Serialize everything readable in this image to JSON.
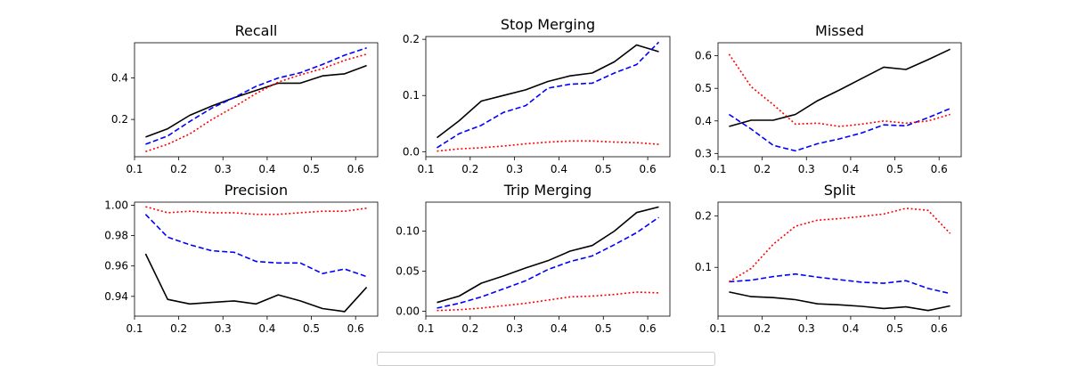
{
  "chart_data": [
    {
      "type": "line",
      "title": "Recall",
      "x": [
        0.125,
        0.175,
        0.225,
        0.275,
        0.325,
        0.375,
        0.425,
        0.475,
        0.525,
        0.575,
        0.625
      ],
      "series": [
        {
          "color": "#000000",
          "dash": "solid",
          "values": [
            0.115,
            0.155,
            0.22,
            0.265,
            0.305,
            0.34,
            0.375,
            0.375,
            0.41,
            0.42,
            0.46
          ]
        },
        {
          "color": "#0000ff",
          "dash": "dashed",
          "values": [
            0.08,
            0.12,
            0.19,
            0.255,
            0.305,
            0.36,
            0.4,
            0.425,
            0.465,
            0.51,
            0.545
          ]
        },
        {
          "color": "#ff0000",
          "dash": "dotted",
          "values": [
            0.045,
            0.08,
            0.13,
            0.2,
            0.26,
            0.325,
            0.38,
            0.415,
            0.445,
            0.485,
            0.515
          ]
        }
      ],
      "xlim": [
        0.1,
        0.65
      ],
      "ylim": [
        0.02,
        0.57
      ],
      "xticks": [
        0.1,
        0.2,
        0.3,
        0.4,
        0.5,
        0.6
      ],
      "yticks": [
        0.2,
        0.4
      ],
      "xtick_labels": [
        "0.1",
        "0.2",
        "0.3",
        "0.4",
        "0.5",
        "0.6"
      ],
      "ytick_labels": [
        "0.2",
        "0.4"
      ]
    },
    {
      "type": "line",
      "title": "Stop Merging",
      "x": [
        0.125,
        0.175,
        0.225,
        0.275,
        0.325,
        0.375,
        0.425,
        0.475,
        0.525,
        0.575,
        0.625
      ],
      "series": [
        {
          "color": "#000000",
          "dash": "solid",
          "values": [
            0.025,
            0.055,
            0.09,
            0.1,
            0.11,
            0.125,
            0.135,
            0.14,
            0.16,
            0.19,
            0.178
          ]
        },
        {
          "color": "#0000ff",
          "dash": "dashed",
          "values": [
            0.007,
            0.032,
            0.047,
            0.07,
            0.082,
            0.113,
            0.12,
            0.122,
            0.14,
            0.155,
            0.195
          ]
        },
        {
          "color": "#ff0000",
          "dash": "dotted",
          "values": [
            0.001,
            0.005,
            0.007,
            0.01,
            0.014,
            0.017,
            0.019,
            0.019,
            0.017,
            0.016,
            0.013
          ]
        }
      ],
      "xlim": [
        0.1,
        0.65
      ],
      "ylim": [
        -0.009,
        0.205
      ],
      "xticks": [
        0.1,
        0.2,
        0.3,
        0.4,
        0.5,
        0.6
      ],
      "yticks": [
        0.0,
        0.1,
        0.2
      ],
      "xtick_labels": [
        "0.1",
        "0.2",
        "0.3",
        "0.4",
        "0.5",
        "0.6"
      ],
      "ytick_labels": [
        "0.0",
        "0.1",
        "0.2"
      ]
    },
    {
      "type": "line",
      "title": "Missed",
      "x": [
        0.125,
        0.175,
        0.225,
        0.275,
        0.325,
        0.375,
        0.425,
        0.475,
        0.525,
        0.575,
        0.625
      ],
      "series": [
        {
          "color": "#000000",
          "dash": "solid",
          "values": [
            0.383,
            0.402,
            0.402,
            0.42,
            0.462,
            0.495,
            0.53,
            0.565,
            0.558,
            0.588,
            0.62
          ]
        },
        {
          "color": "#0000ff",
          "dash": "dashed",
          "values": [
            0.42,
            0.375,
            0.325,
            0.308,
            0.33,
            0.345,
            0.363,
            0.388,
            0.385,
            0.41,
            0.438
          ]
        },
        {
          "color": "#ff0000",
          "dash": "dotted",
          "values": [
            0.605,
            0.505,
            0.45,
            0.39,
            0.393,
            0.383,
            0.39,
            0.4,
            0.393,
            0.4,
            0.42
          ]
        }
      ],
      "xlim": [
        0.1,
        0.65
      ],
      "ylim": [
        0.29,
        0.64
      ],
      "xticks": [
        0.1,
        0.2,
        0.3,
        0.4,
        0.5,
        0.6
      ],
      "yticks": [
        0.3,
        0.4,
        0.5,
        0.6
      ],
      "xtick_labels": [
        "0.1",
        "0.2",
        "0.3",
        "0.4",
        "0.5",
        "0.6"
      ],
      "ytick_labels": [
        "0.3",
        "0.4",
        "0.5",
        "0.6"
      ]
    },
    {
      "type": "line",
      "title": "Precision",
      "x": [
        0.125,
        0.175,
        0.225,
        0.275,
        0.325,
        0.375,
        0.425,
        0.475,
        0.525,
        0.575,
        0.625
      ],
      "series": [
        {
          "color": "#000000",
          "dash": "solid",
          "values": [
            0.968,
            0.938,
            0.935,
            0.936,
            0.937,
            0.935,
            0.941,
            0.937,
            0.932,
            0.93,
            0.946
          ]
        },
        {
          "color": "#0000ff",
          "dash": "dashed",
          "values": [
            0.994,
            0.979,
            0.974,
            0.97,
            0.969,
            0.963,
            0.962,
            0.962,
            0.955,
            0.958,
            0.953
          ]
        },
        {
          "color": "#ff0000",
          "dash": "dotted",
          "values": [
            0.999,
            0.995,
            0.996,
            0.995,
            0.995,
            0.994,
            0.994,
            0.995,
            0.996,
            0.996,
            0.998
          ]
        }
      ],
      "xlim": [
        0.1,
        0.65
      ],
      "ylim": [
        0.927,
        1.002
      ],
      "xticks": [
        0.1,
        0.2,
        0.3,
        0.4,
        0.5,
        0.6
      ],
      "yticks": [
        0.94,
        0.96,
        0.98,
        1.0
      ],
      "xtick_labels": [
        "0.1",
        "0.2",
        "0.3",
        "0.4",
        "0.5",
        "0.6"
      ],
      "ytick_labels": [
        "0.94",
        "0.96",
        "0.98",
        "1.00"
      ]
    },
    {
      "type": "line",
      "title": "Trip Merging",
      "x": [
        0.125,
        0.175,
        0.225,
        0.275,
        0.325,
        0.375,
        0.425,
        0.475,
        0.525,
        0.575,
        0.625
      ],
      "series": [
        {
          "color": "#000000",
          "dash": "solid",
          "values": [
            0.011,
            0.019,
            0.035,
            0.044,
            0.054,
            0.063,
            0.075,
            0.082,
            0.1,
            0.123,
            0.13
          ]
        },
        {
          "color": "#0000ff",
          "dash": "dashed",
          "values": [
            0.004,
            0.01,
            0.018,
            0.028,
            0.038,
            0.052,
            0.062,
            0.069,
            0.083,
            0.098,
            0.117
          ]
        },
        {
          "color": "#ff0000",
          "dash": "dotted",
          "values": [
            0.001,
            0.002,
            0.004,
            0.007,
            0.01,
            0.014,
            0.018,
            0.019,
            0.021,
            0.024,
            0.023
          ]
        }
      ],
      "xlim": [
        0.1,
        0.65
      ],
      "ylim": [
        -0.006,
        0.136
      ],
      "xticks": [
        0.1,
        0.2,
        0.3,
        0.4,
        0.5,
        0.6
      ],
      "yticks": [
        0.0,
        0.05,
        0.1
      ],
      "xtick_labels": [
        "0.1",
        "0.2",
        "0.3",
        "0.4",
        "0.5",
        "0.6"
      ],
      "ytick_labels": [
        "0.00",
        "0.05",
        "0.10"
      ]
    },
    {
      "type": "line",
      "title": "Split",
      "x": [
        0.125,
        0.175,
        0.225,
        0.275,
        0.325,
        0.375,
        0.425,
        0.475,
        0.525,
        0.575,
        0.625
      ],
      "series": [
        {
          "color": "#000000",
          "dash": "solid",
          "values": [
            0.052,
            0.043,
            0.041,
            0.037,
            0.029,
            0.027,
            0.024,
            0.02,
            0.023,
            0.016,
            0.025
          ]
        },
        {
          "color": "#0000ff",
          "dash": "dashed",
          "values": [
            0.072,
            0.075,
            0.082,
            0.087,
            0.081,
            0.076,
            0.071,
            0.069,
            0.074,
            0.059,
            0.049
          ]
        },
        {
          "color": "#ff0000",
          "dash": "dotted",
          "values": [
            0.072,
            0.098,
            0.145,
            0.18,
            0.192,
            0.195,
            0.199,
            0.204,
            0.215,
            0.211,
            0.166
          ]
        }
      ],
      "xlim": [
        0.1,
        0.65
      ],
      "ylim": [
        0.005,
        0.227
      ],
      "xticks": [
        0.1,
        0.2,
        0.3,
        0.4,
        0.5,
        0.6
      ],
      "yticks": [
        0.1,
        0.2
      ],
      "xtick_labels": [
        "0.1",
        "0.2",
        "0.3",
        "0.4",
        "0.5",
        "0.6"
      ],
      "ytick_labels": [
        "0.1",
        "0.2"
      ]
    }
  ]
}
